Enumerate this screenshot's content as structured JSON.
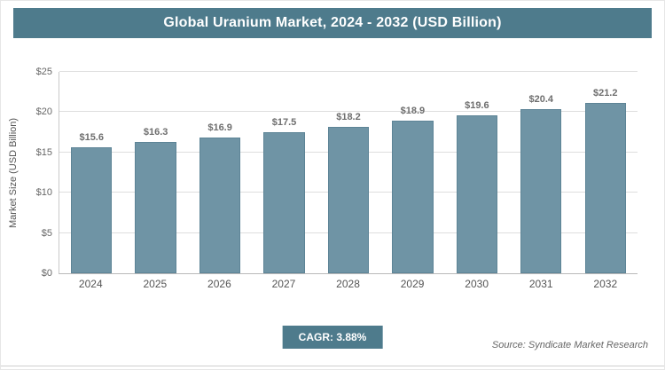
{
  "header": {
    "title": "Global Uranium Market, 2024 - 2032 (USD Billion)"
  },
  "chart_data": {
    "type": "bar",
    "title": "Global Uranium Market, 2024 - 2032 (USD Billion)",
    "categories": [
      "2024",
      "2025",
      "2026",
      "2027",
      "2028",
      "2029",
      "2030",
      "2031",
      "2032"
    ],
    "values": [
      15.6,
      16.3,
      16.9,
      17.5,
      18.2,
      18.9,
      19.6,
      20.4,
      21.2
    ],
    "bar_labels": [
      "$15.6",
      "$16.3",
      "$16.9",
      "$17.5",
      "$18.2",
      "$18.9",
      "$19.6",
      "$20.4",
      "$21.2"
    ],
    "xlabel": "",
    "ylabel": "Market Size (USD Billion)",
    "ylim": [
      0,
      25
    ],
    "yticks": [
      0,
      5,
      10,
      15,
      20,
      25
    ],
    "ytick_labels": [
      "$0",
      "$5",
      "$10",
      "$15",
      "$20",
      "$25"
    ],
    "grid": true,
    "legend": "none",
    "bar_color": "#6f94a5"
  },
  "footer": {
    "cagr_label": "CAGR: 3.88%",
    "source": "Source: Syndicate Market Research"
  },
  "colors": {
    "accent_teal": "#4e7b8c",
    "bar_fill": "#6f94a5",
    "gridline": "#dedede"
  }
}
